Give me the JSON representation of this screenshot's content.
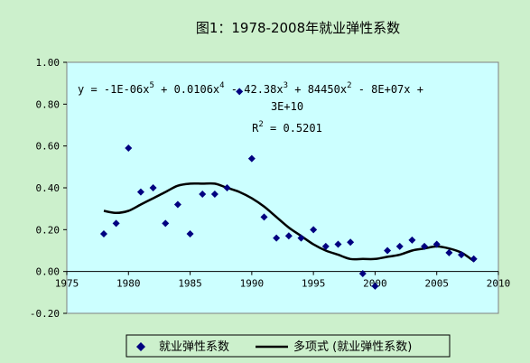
{
  "chart_data": {
    "type": "scatter",
    "title": "图1：1978-2008年就业弹性系数",
    "xlabel": "",
    "ylabel": "",
    "xlim": [
      1975,
      2010
    ],
    "ylim": [
      -0.2,
      1.0
    ],
    "x_ticks": [
      "1975",
      "1980",
      "1985",
      "1990",
      "1995",
      "2000",
      "2005",
      "2010"
    ],
    "y_ticks": [
      "1.00",
      "0.80",
      "0.60",
      "0.40",
      "0.20",
      "0.00",
      "-0.20"
    ],
    "grid": false,
    "legend_position": "bottom",
    "series": [
      {
        "name": "就业弹性系数",
        "kind": "scatter",
        "color": "#000080",
        "x": [
          1978,
          1979,
          1980,
          1981,
          1982,
          1983,
          1984,
          1985,
          1986,
          1987,
          1988,
          1989,
          1990,
          1991,
          1992,
          1993,
          1994,
          1995,
          1996,
          1997,
          1998,
          1999,
          2000,
          2001,
          2002,
          2003,
          2004,
          2005,
          2006,
          2007,
          2008
        ],
        "y": [
          0.18,
          0.23,
          0.59,
          0.38,
          0.4,
          0.23,
          0.32,
          0.18,
          0.37,
          0.37,
          0.4,
          0.86,
          0.54,
          0.26,
          0.16,
          0.17,
          0.16,
          0.2,
          0.12,
          0.13,
          0.14,
          -0.01,
          -0.07,
          0.1,
          0.12,
          0.15,
          0.12,
          0.13,
          0.09,
          0.08,
          0.06
        ]
      },
      {
        "name": "多项式 (就业弹性系数)",
        "kind": "trendline",
        "color": "#000000",
        "x": [
          1978,
          1979,
          1980,
          1981,
          1982,
          1983,
          1984,
          1985,
          1986,
          1987,
          1988,
          1989,
          1990,
          1991,
          1992,
          1993,
          1994,
          1995,
          1996,
          1997,
          1998,
          1999,
          2000,
          2001,
          2002,
          2003,
          2004,
          2005,
          2006,
          2007,
          2008
        ],
        "y": [
          0.29,
          0.28,
          0.29,
          0.32,
          0.35,
          0.38,
          0.41,
          0.42,
          0.42,
          0.42,
          0.4,
          0.38,
          0.35,
          0.31,
          0.26,
          0.21,
          0.17,
          0.13,
          0.1,
          0.08,
          0.06,
          0.06,
          0.06,
          0.07,
          0.08,
          0.1,
          0.11,
          0.12,
          0.11,
          0.09,
          0.05
        ]
      }
    ],
    "annotation": {
      "equation_line1": "y = -1E-06x",
      "eq_sup1": "5",
      "eq_mid1": " + 0.0106x",
      "eq_sup2": "4",
      "eq_mid2": " - 42.38x",
      "eq_sup3": "3",
      "eq_mid3": " + 84450x",
      "eq_sup4": "2",
      "eq_tail": " - 8E+07x +",
      "equation_line2": "3E+10",
      "r2_prefix": "R",
      "r2_sup": "2",
      "r2_value": " = 0.5201"
    },
    "colors": {
      "background": "#ccf0cc",
      "plot_area": "#ccffff",
      "marker": "#000080",
      "trendline": "#000000"
    }
  }
}
